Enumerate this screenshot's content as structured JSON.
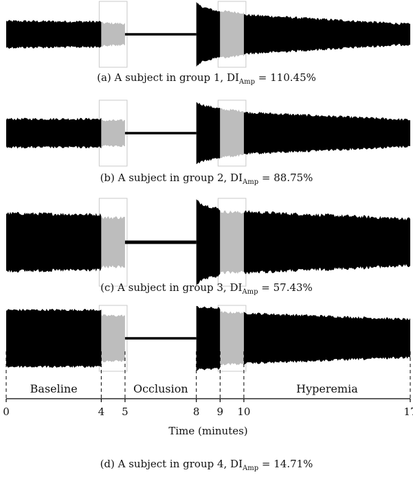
{
  "panels": [
    {
      "caption_prefix": "(a)  A subject in group 1, DI",
      "caption_sub": "Amp",
      "caption_value": " = 110.45%",
      "chart_data": {
        "type": "area",
        "x_unit": "minutes",
        "segments": [
          {
            "t0": 0,
            "t1": 4,
            "amp0": 0.42,
            "amp1": 0.4
          },
          {
            "t0": 4,
            "t1": 5,
            "amp0": 0.36,
            "amp1": 0.34
          },
          {
            "t0": 5,
            "t1": 8,
            "amp0": 0.04,
            "amp1": 0.04
          },
          {
            "t0": 8,
            "t1": 9,
            "amp0": 1.0,
            "amp1": 0.72
          },
          {
            "t0": 9,
            "t1": 10,
            "amp0": 0.74,
            "amp1": 0.68
          },
          {
            "t0": 10,
            "t1": 17,
            "amp0": 0.62,
            "amp1": 0.32
          }
        ],
        "highlight_windows": [
          [
            4,
            5
          ],
          [
            9,
            10
          ]
        ],
        "xlim": [
          0,
          17
        ]
      }
    },
    {
      "caption_prefix": "(b)  A subject in group 2, DI",
      "caption_sub": "Amp",
      "caption_value": " = 88.75%",
      "chart_data": {
        "type": "area",
        "x_unit": "minutes",
        "segments": [
          {
            "t0": 0,
            "t1": 4,
            "amp0": 0.45,
            "amp1": 0.45
          },
          {
            "t0": 4,
            "t1": 5,
            "amp0": 0.4,
            "amp1": 0.4
          },
          {
            "t0": 5,
            "t1": 8,
            "amp0": 0.04,
            "amp1": 0.04
          },
          {
            "t0": 8,
            "t1": 9,
            "amp0": 1.0,
            "amp1": 0.78
          },
          {
            "t0": 9,
            "t1": 10,
            "amp0": 0.76,
            "amp1": 0.7
          },
          {
            "t0": 10,
            "t1": 17,
            "amp0": 0.66,
            "amp1": 0.42
          }
        ],
        "highlight_windows": [
          [
            4,
            5
          ],
          [
            9,
            10
          ]
        ],
        "xlim": [
          0,
          17
        ]
      }
    },
    {
      "caption_prefix": "(c)  A subject in group 3, DI",
      "caption_sub": "Amp",
      "caption_value": " = 57.43%",
      "chart_data": {
        "type": "area",
        "x_unit": "minutes",
        "segments": [
          {
            "t0": 0,
            "t1": 4,
            "amp0": 0.68,
            "amp1": 0.65
          },
          {
            "t0": 4,
            "t1": 5,
            "amp0": 0.58,
            "amp1": 0.58
          },
          {
            "t0": 5,
            "t1": 8,
            "amp0": 0.04,
            "amp1": 0.04
          },
          {
            "t0": 8,
            "t1": 9,
            "amp0": 1.0,
            "amp1": 0.78
          },
          {
            "t0": 9,
            "t1": 10,
            "amp0": 0.72,
            "amp1": 0.7
          },
          {
            "t0": 10,
            "t1": 17,
            "amp0": 0.72,
            "amp1": 0.55
          }
        ],
        "highlight_windows": [
          [
            4,
            5
          ],
          [
            9,
            10
          ]
        ],
        "xlim": [
          0,
          17
        ]
      }
    },
    {
      "caption_prefix": "(d)  A subject in group 4, DI",
      "caption_sub": "Amp",
      "caption_value": " = 14.71%",
      "chart_data": {
        "type": "area",
        "x_unit": "minutes",
        "segments": [
          {
            "t0": 0,
            "t1": 4,
            "amp0": 0.9,
            "amp1": 0.9
          },
          {
            "t0": 4,
            "t1": 5,
            "amp0": 0.72,
            "amp1": 0.72
          },
          {
            "t0": 5,
            "t1": 8,
            "amp0": 0.04,
            "amp1": 0.04
          },
          {
            "t0": 8,
            "t1": 9,
            "amp0": 1.0,
            "amp1": 0.95
          },
          {
            "t0": 9,
            "t1": 10,
            "amp0": 0.82,
            "amp1": 0.82
          },
          {
            "t0": 10,
            "t1": 17,
            "amp0": 0.8,
            "amp1": 0.6
          }
        ],
        "highlight_windows": [
          [
            4,
            5
          ],
          [
            9,
            10
          ]
        ],
        "xlim": [
          0,
          17
        ]
      }
    }
  ],
  "phases": [
    {
      "label": "Baseline",
      "t0": 0,
      "t1": 4
    },
    {
      "label": "Occlusion",
      "t0": 5,
      "t1": 8
    },
    {
      "label": "Hyperemia",
      "t0": 10,
      "t1": 17
    }
  ],
  "time_axis": {
    "label": "Time (minutes)",
    "ticks": [
      0,
      4,
      5,
      8,
      9,
      10,
      17
    ],
    "tick_labels": [
      "0",
      "4",
      "5",
      "8",
      "9",
      "10",
      "17"
    ],
    "xlim": [
      0,
      17
    ]
  },
  "colors": {
    "signal": "#000000",
    "highlight": "#bdbdbd",
    "highlight_border": "#c8c8c8",
    "axis": "#000000"
  }
}
